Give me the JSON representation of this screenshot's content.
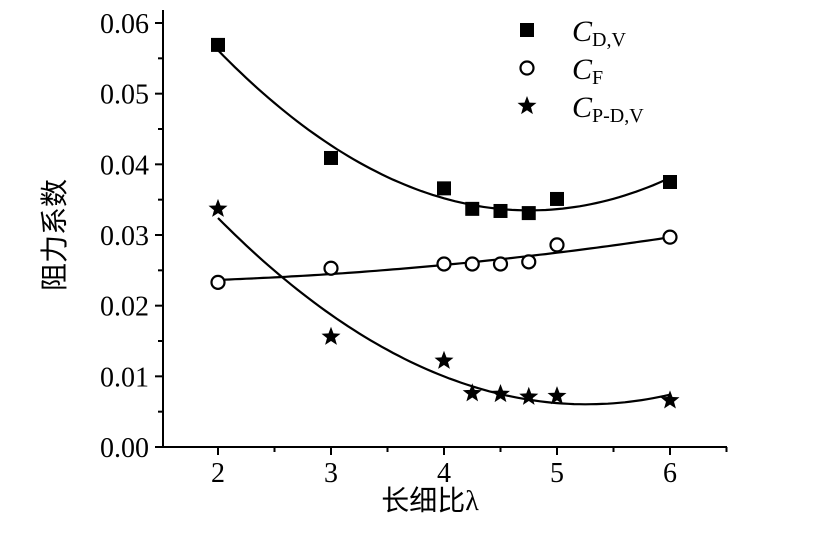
{
  "chart_data": {
    "type": "scatter",
    "title": "",
    "xlabel": "长细比λ",
    "ylabel": "阻力系数",
    "xlim": [
      1.5,
      6.5
    ],
    "ylim": [
      0.0,
      0.06
    ],
    "xticks": [
      "2",
      "3",
      "4",
      "5",
      "6"
    ],
    "xtick_values": [
      2,
      3,
      4,
      5,
      6
    ],
    "yticks": [
      "0.00",
      "0.01",
      "0.02",
      "0.03",
      "0.04",
      "0.05",
      "0.06"
    ],
    "ytick_values": [
      0,
      0.01,
      0.02,
      0.03,
      0.04,
      0.05,
      0.06
    ],
    "grid": false,
    "legend_position": "top-right",
    "x": [
      2,
      3,
      4,
      4.25,
      4.5,
      4.75,
      5,
      6
    ],
    "series": [
      {
        "name": "C_D,V",
        "symbol": "C",
        "subscript": "D,V",
        "marker": "filled-square",
        "fit": "quadratic",
        "values": [
          0.0569,
          0.0409,
          0.0366,
          0.0337,
          0.0334,
          0.0331,
          0.0351,
          0.0375
        ]
      },
      {
        "name": "C_F",
        "symbol": "C",
        "subscript": "F",
        "marker": "open-circle",
        "fit": "quadratic",
        "values": [
          0.0233,
          0.0253,
          0.0259,
          0.0259,
          0.0259,
          0.0262,
          0.0286,
          0.0297
        ]
      },
      {
        "name": "C_P-D,V",
        "symbol": "C",
        "subscript": "P-D,V",
        "marker": "filled-star",
        "fit": "quadratic",
        "values": [
          0.0337,
          0.0156,
          0.0122,
          0.0076,
          0.0075,
          0.0071,
          0.0072,
          0.0066
        ]
      }
    ]
  }
}
